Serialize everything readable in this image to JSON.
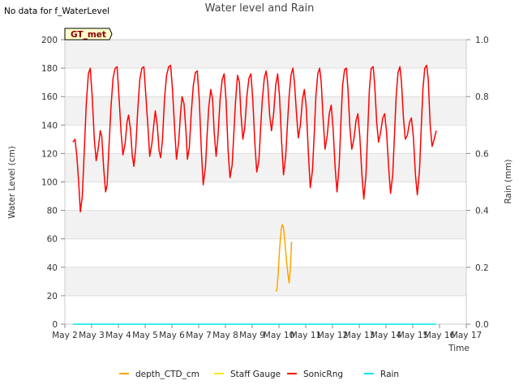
{
  "no_data_note": "No data for f_WaterLevel",
  "chart_data": {
    "type": "line",
    "title": "Water level and Rain",
    "xlabel": "Time",
    "ylabel_left": "Water Level (cm)",
    "ylabel_right": "Rain (mm)",
    "station_label": "GT_met",
    "legend_position": "bottom-center",
    "xlim": [
      0,
      15
    ],
    "ylim_left": [
      0,
      200
    ],
    "ylim_right": [
      0,
      1.0
    ],
    "x_ticks": [
      0,
      1,
      2,
      3,
      4,
      5,
      6,
      7,
      8,
      9,
      10,
      11,
      12,
      13,
      14,
      15
    ],
    "x_tick_labels": [
      "May 2",
      "May 3",
      "May 4",
      "May 5",
      "May 6",
      "May 7",
      "May 8",
      "May 9",
      "May 10",
      "May 11",
      "May 12",
      "May 13",
      "May 14",
      "May 15",
      "May 16",
      "May 17"
    ],
    "y_ticks_left": [
      0,
      20,
      40,
      60,
      80,
      100,
      120,
      140,
      160,
      180,
      200
    ],
    "y_tick_labels_left": [
      "0",
      "20",
      "40",
      "60",
      "80",
      "100",
      "120",
      "140",
      "160",
      "180",
      "200"
    ],
    "y_ticks_right": [
      0,
      0.2,
      0.4,
      0.6,
      0.8,
      1.0
    ],
    "y_tick_labels_right": [
      "0.0",
      "0.2",
      "0.4",
      "0.6",
      "0.8",
      "1.0"
    ],
    "series": [
      {
        "name": "depth_CTD_cm",
        "color": "#FFA500",
        "axis": "left",
        "points": [
          [
            7.88,
            23
          ],
          [
            7.92,
            24
          ],
          [
            7.97,
            35
          ],
          [
            8.02,
            52
          ],
          [
            8.08,
            66
          ],
          [
            8.12,
            70
          ],
          [
            8.17,
            68
          ],
          [
            8.22,
            58
          ],
          [
            8.28,
            45
          ],
          [
            8.33,
            36
          ],
          [
            8.38,
            29
          ],
          [
            8.43,
            40
          ],
          [
            8.47,
            58
          ]
        ]
      },
      {
        "name": "Staff Gauge",
        "color": "#FFE800",
        "axis": "left",
        "points": []
      },
      {
        "name": "SonicRng",
        "color": "#FF0000",
        "axis": "left",
        "points": [
          [
            0.3,
            128
          ],
          [
            0.38,
            130
          ],
          [
            0.45,
            118
          ],
          [
            0.52,
            98
          ],
          [
            0.58,
            79
          ],
          [
            0.65,
            90
          ],
          [
            0.72,
            120
          ],
          [
            0.8,
            155
          ],
          [
            0.88,
            176
          ],
          [
            0.95,
            180
          ],
          [
            1.02,
            160
          ],
          [
            1.1,
            130
          ],
          [
            1.17,
            115
          ],
          [
            1.25,
            124
          ],
          [
            1.32,
            136
          ],
          [
            1.38,
            132
          ],
          [
            1.45,
            110
          ],
          [
            1.52,
            93
          ],
          [
            1.58,
            98
          ],
          [
            1.65,
            125
          ],
          [
            1.72,
            152
          ],
          [
            1.8,
            173
          ],
          [
            1.88,
            180
          ],
          [
            1.95,
            181
          ],
          [
            2.02,
            160
          ],
          [
            2.1,
            135
          ],
          [
            2.17,
            119
          ],
          [
            2.25,
            127
          ],
          [
            2.32,
            142
          ],
          [
            2.38,
            147
          ],
          [
            2.45,
            137
          ],
          [
            2.52,
            118
          ],
          [
            2.58,
            111
          ],
          [
            2.65,
            124
          ],
          [
            2.72,
            150
          ],
          [
            2.8,
            172
          ],
          [
            2.88,
            180
          ],
          [
            2.95,
            181
          ],
          [
            3.02,
            162
          ],
          [
            3.1,
            140
          ],
          [
            3.17,
            118
          ],
          [
            3.25,
            127
          ],
          [
            3.32,
            140
          ],
          [
            3.38,
            150
          ],
          [
            3.45,
            140
          ],
          [
            3.52,
            122
          ],
          [
            3.58,
            117
          ],
          [
            3.65,
            130
          ],
          [
            3.72,
            158
          ],
          [
            3.8,
            175
          ],
          [
            3.88,
            181
          ],
          [
            3.95,
            182
          ],
          [
            4.02,
            165
          ],
          [
            4.1,
            138
          ],
          [
            4.17,
            116
          ],
          [
            4.25,
            128
          ],
          [
            4.32,
            148
          ],
          [
            4.38,
            160
          ],
          [
            4.45,
            155
          ],
          [
            4.52,
            137
          ],
          [
            4.58,
            116
          ],
          [
            4.65,
            124
          ],
          [
            4.72,
            148
          ],
          [
            4.8,
            168
          ],
          [
            4.88,
            177
          ],
          [
            4.95,
            178
          ],
          [
            5.02,
            158
          ],
          [
            5.1,
            122
          ],
          [
            5.17,
            98
          ],
          [
            5.25,
            110
          ],
          [
            5.32,
            135
          ],
          [
            5.38,
            153
          ],
          [
            5.45,
            165
          ],
          [
            5.52,
            158
          ],
          [
            5.58,
            135
          ],
          [
            5.65,
            118
          ],
          [
            5.72,
            132
          ],
          [
            5.8,
            158
          ],
          [
            5.88,
            172
          ],
          [
            5.95,
            176
          ],
          [
            6.02,
            158
          ],
          [
            6.1,
            122
          ],
          [
            6.17,
            103
          ],
          [
            6.25,
            112
          ],
          [
            6.32,
            137
          ],
          [
            6.38,
            157
          ],
          [
            6.45,
            175
          ],
          [
            6.52,
            170
          ],
          [
            6.58,
            148
          ],
          [
            6.65,
            130
          ],
          [
            6.72,
            138
          ],
          [
            6.8,
            160
          ],
          [
            6.88,
            173
          ],
          [
            6.95,
            176
          ],
          [
            7.02,
            158
          ],
          [
            7.1,
            127
          ],
          [
            7.17,
            107
          ],
          [
            7.25,
            115
          ],
          [
            7.32,
            140
          ],
          [
            7.38,
            158
          ],
          [
            7.45,
            173
          ],
          [
            7.52,
            178
          ],
          [
            7.58,
            170
          ],
          [
            7.65,
            147
          ],
          [
            7.72,
            136
          ],
          [
            7.8,
            148
          ],
          [
            7.88,
            168
          ],
          [
            7.95,
            176
          ],
          [
            8.02,
            160
          ],
          [
            8.1,
            128
          ],
          [
            8.17,
            105
          ],
          [
            8.25,
            118
          ],
          [
            8.32,
            142
          ],
          [
            8.38,
            160
          ],
          [
            8.45,
            175
          ],
          [
            8.52,
            180
          ],
          [
            8.58,
            170
          ],
          [
            8.65,
            150
          ],
          [
            8.72,
            131
          ],
          [
            8.8,
            140
          ],
          [
            8.88,
            158
          ],
          [
            8.95,
            165
          ],
          [
            9.02,
            152
          ],
          [
            9.1,
            120
          ],
          [
            9.17,
            96
          ],
          [
            9.25,
            108
          ],
          [
            9.32,
            135
          ],
          [
            9.38,
            160
          ],
          [
            9.45,
            176
          ],
          [
            9.52,
            180
          ],
          [
            9.58,
            170
          ],
          [
            9.65,
            145
          ],
          [
            9.72,
            123
          ],
          [
            9.8,
            132
          ],
          [
            9.88,
            148
          ],
          [
            9.95,
            154
          ],
          [
            10.02,
            138
          ],
          [
            10.1,
            110
          ],
          [
            10.17,
            93
          ],
          [
            10.25,
            112
          ],
          [
            10.32,
            145
          ],
          [
            10.38,
            168
          ],
          [
            10.45,
            179
          ],
          [
            10.52,
            180
          ],
          [
            10.58,
            165
          ],
          [
            10.65,
            138
          ],
          [
            10.72,
            123
          ],
          [
            10.8,
            130
          ],
          [
            10.88,
            143
          ],
          [
            10.95,
            148
          ],
          [
            11.02,
            132
          ],
          [
            11.1,
            105
          ],
          [
            11.17,
            88
          ],
          [
            11.25,
            105
          ],
          [
            11.32,
            138
          ],
          [
            11.38,
            165
          ],
          [
            11.45,
            180
          ],
          [
            11.52,
            181
          ],
          [
            11.58,
            168
          ],
          [
            11.65,
            142
          ],
          [
            11.72,
            128
          ],
          [
            11.8,
            135
          ],
          [
            11.88,
            145
          ],
          [
            11.95,
            148
          ],
          [
            12.02,
            135
          ],
          [
            12.1,
            110
          ],
          [
            12.17,
            92
          ],
          [
            12.25,
            105
          ],
          [
            12.32,
            135
          ],
          [
            12.38,
            160
          ],
          [
            12.45,
            177
          ],
          [
            12.52,
            181
          ],
          [
            12.58,
            170
          ],
          [
            12.65,
            145
          ],
          [
            12.72,
            130
          ],
          [
            12.8,
            133
          ],
          [
            12.88,
            142
          ],
          [
            12.95,
            145
          ],
          [
            13.02,
            132
          ],
          [
            13.1,
            105
          ],
          [
            13.17,
            91
          ],
          [
            13.25,
            108
          ],
          [
            13.32,
            140
          ],
          [
            13.38,
            165
          ],
          [
            13.45,
            180
          ],
          [
            13.52,
            182
          ],
          [
            13.58,
            172
          ],
          [
            13.65,
            140
          ],
          [
            13.72,
            125
          ],
          [
            13.8,
            130
          ],
          [
            13.88,
            136
          ]
        ]
      },
      {
        "name": "Rain",
        "color": "#00E5EE",
        "axis": "right",
        "points": [
          [
            0.3,
            0
          ],
          [
            13.88,
            0
          ]
        ]
      }
    ]
  }
}
